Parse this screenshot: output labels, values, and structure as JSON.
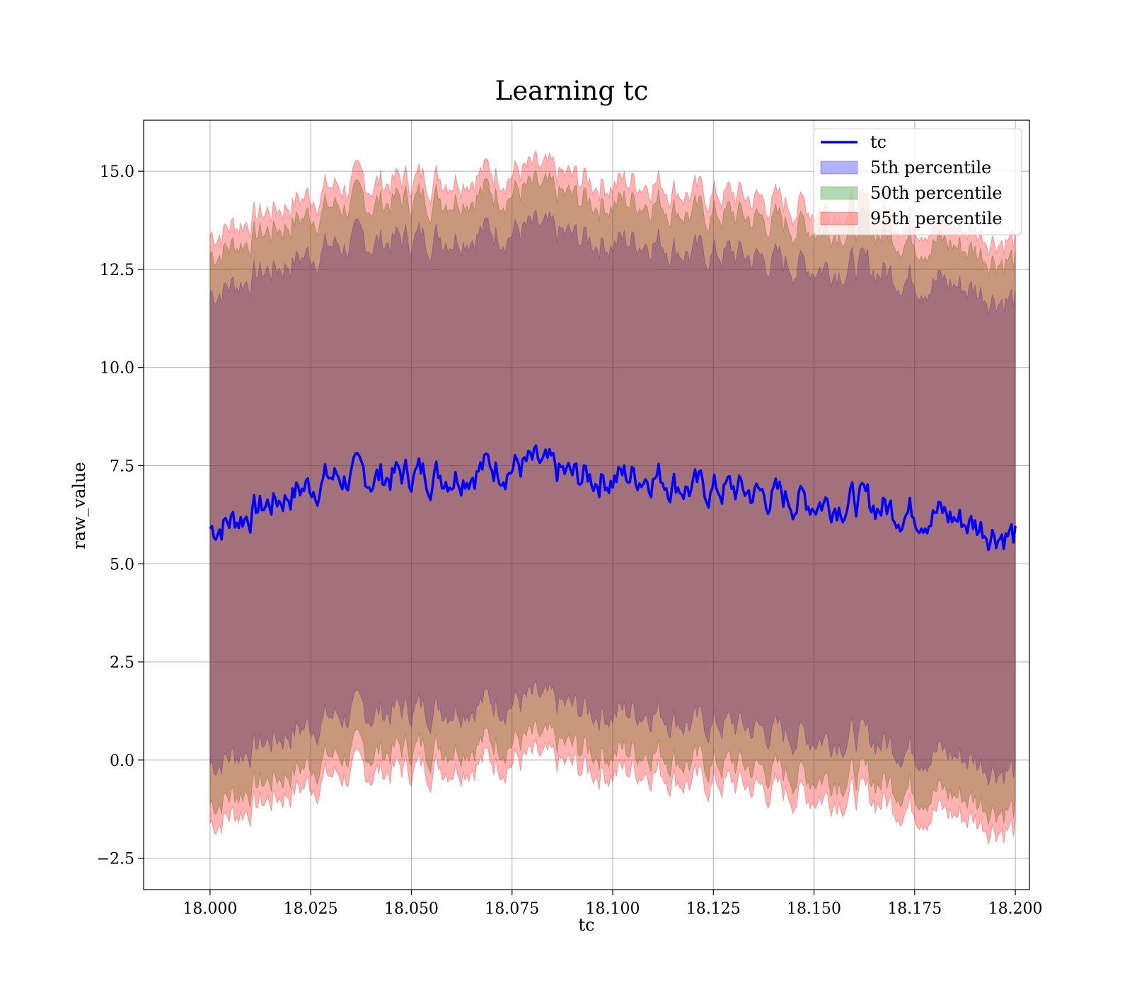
{
  "chart_data": {
    "type": "line",
    "title": "Learning tc",
    "xlabel": "tc",
    "ylabel": "raw_value",
    "xlim": [
      17.9835,
      18.2035
    ],
    "ylim": [
      -3.3,
      16.3
    ],
    "x_ticks": [
      18.0,
      18.025,
      18.05,
      18.075,
      18.1,
      18.125,
      18.15,
      18.175,
      18.2
    ],
    "x_tick_labels": [
      "18.000",
      "18.025",
      "18.050",
      "18.075",
      "18.100",
      "18.125",
      "18.150",
      "18.175",
      "18.200"
    ],
    "y_ticks": [
      -2.5,
      0.0,
      2.5,
      5.0,
      7.5,
      10.0,
      12.5,
      15.0
    ],
    "y_tick_labels": [
      "−2.5",
      "0.0",
      "2.5",
      "5.0",
      "7.5",
      "10.0",
      "12.5",
      "15.0"
    ],
    "grid": true,
    "legend_position": "top-right",
    "x": [
      18.0,
      18.01,
      18.02,
      18.03,
      18.04,
      18.05,
      18.06,
      18.07,
      18.08,
      18.09,
      18.1,
      18.11,
      18.12,
      18.13,
      18.14,
      18.15,
      18.16,
      18.17,
      18.18,
      18.19,
      18.2
    ],
    "series": [
      {
        "name": "tc",
        "kind": "line",
        "color": "#0000ff",
        "values": [
          5.9,
          6.3,
          6.8,
          7.2,
          7.2,
          7.3,
          7.3,
          7.5,
          7.5,
          7.2,
          7.2,
          7.3,
          6.9,
          6.9,
          6.7,
          6.6,
          6.6,
          6.4,
          6.3,
          6.0,
          5.7
        ]
      },
      {
        "name": "5th percentile",
        "kind": "band",
        "color": "#0000ff",
        "lower": [
          -0.1,
          0.3,
          0.7,
          1.1,
          1.2,
          1.3,
          1.4,
          1.5,
          1.5,
          1.3,
          1.2,
          1.3,
          0.9,
          0.9,
          0.7,
          0.6,
          0.6,
          0.4,
          0.2,
          0.0,
          -0.3
        ],
        "upper": [
          11.9,
          12.3,
          12.7,
          13.1,
          13.2,
          13.3,
          13.4,
          13.5,
          13.5,
          13.3,
          13.2,
          13.3,
          12.9,
          12.9,
          12.7,
          12.6,
          12.6,
          12.4,
          12.2,
          12.0,
          11.7
        ]
      },
      {
        "name": "50th percentile",
        "kind": "band",
        "color": "#008000",
        "lower": [
          -1.1,
          -0.7,
          -0.3,
          0.1,
          0.2,
          0.3,
          0.4,
          0.5,
          0.5,
          0.3,
          0.2,
          0.3,
          -0.1,
          -0.1,
          -0.3,
          -0.4,
          -0.4,
          -0.6,
          -0.8,
          -1.0,
          -1.3
        ],
        "upper": [
          12.9,
          13.3,
          13.7,
          14.1,
          14.2,
          14.3,
          14.4,
          14.5,
          14.5,
          14.3,
          14.2,
          14.3,
          13.9,
          13.9,
          13.7,
          13.6,
          13.6,
          13.4,
          13.2,
          13.0,
          12.7
        ]
      },
      {
        "name": "95th percentile",
        "kind": "band",
        "color": "#ff0000",
        "lower": [
          -1.6,
          -1.2,
          -0.8,
          -0.4,
          -0.3,
          -0.2,
          -0.1,
          0.0,
          0.0,
          -0.2,
          -0.3,
          -0.2,
          -0.6,
          -0.6,
          -0.8,
          -0.9,
          -0.9,
          -1.1,
          -1.3,
          -1.5,
          -1.8
        ],
        "upper": [
          13.4,
          13.8,
          14.2,
          14.6,
          14.7,
          14.8,
          14.9,
          15.0,
          15.0,
          14.8,
          14.7,
          14.8,
          14.4,
          14.4,
          14.2,
          14.1,
          14.1,
          13.9,
          13.7,
          13.5,
          13.2
        ]
      }
    ]
  }
}
